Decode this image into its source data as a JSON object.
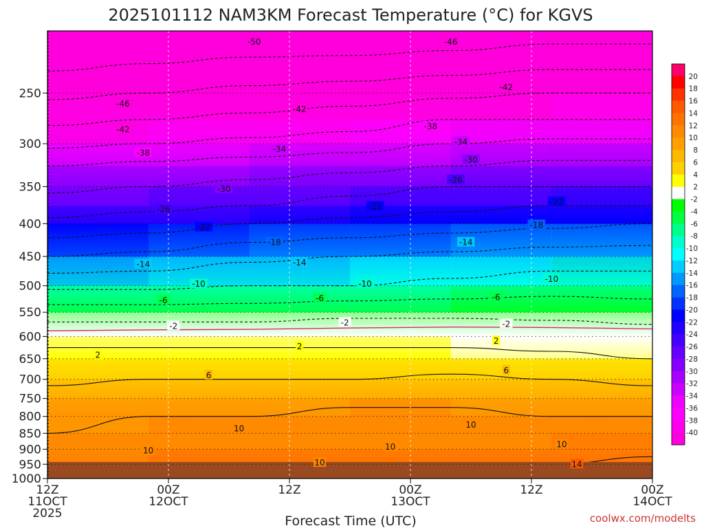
{
  "chart_data": {
    "type": "heatmap",
    "title": "2025101112 NAM3KM Forecast Temperature (°C) for KGVS",
    "xlabel": "Forecast Time (UTC)",
    "ylabel": "",
    "credit": "coolwx.com/modelts",
    "x_range_hours": [
      0,
      60
    ],
    "y_range_hPa": [
      200,
      1000
    ],
    "x_ticks": [
      {
        "hour": 0,
        "lines": [
          "12Z",
          "11OCT",
          "2025"
        ]
      },
      {
        "hour": 12,
        "lines": [
          "00Z",
          "12OCT"
        ]
      },
      {
        "hour": 24,
        "lines": [
          "12Z"
        ]
      },
      {
        "hour": 36,
        "lines": [
          "00Z",
          "13OCT"
        ]
      },
      {
        "hour": 48,
        "lines": [
          "12Z"
        ]
      },
      {
        "hour": 60,
        "lines": [
          "00Z",
          "14OCT"
        ]
      }
    ],
    "y_ticks": [
      250,
      300,
      350,
      400,
      450,
      500,
      550,
      600,
      650,
      700,
      750,
      800,
      850,
      900,
      950,
      1000
    ],
    "pressure_levels_hPa": [
      200,
      225,
      250,
      275,
      300,
      325,
      350,
      375,
      400,
      450,
      500,
      550,
      600,
      650,
      700,
      750,
      800,
      850,
      900,
      950,
      1000
    ],
    "temperature_profile_C": [
      [
        -55,
        -54,
        -54,
        -53,
        -53,
        -52,
        -52
      ],
      [
        -51,
        -50,
        -49,
        -49,
        -48,
        -47,
        -47
      ],
      [
        -47,
        -46,
        -45,
        -44,
        -43,
        -42,
        -42
      ],
      [
        -43,
        -42,
        -41,
        -40,
        -38,
        -38,
        -38
      ],
      [
        -39,
        -38,
        -37,
        -36,
        -34,
        -33,
        -33
      ],
      [
        -34,
        -33,
        -32,
        -31,
        -30,
        -29,
        -29
      ],
      [
        -31,
        -30,
        -29,
        -28,
        -26,
        -26,
        -26
      ],
      [
        -28,
        -27,
        -26,
        -24,
        -23,
        -22,
        -22
      ],
      [
        -25,
        -24,
        -22,
        -21,
        -20,
        -19,
        -18
      ],
      [
        -18,
        -17,
        -15,
        -14,
        -13,
        -12,
        -12
      ],
      [
        -11,
        -11,
        -10,
        -10,
        -9,
        -8,
        -8
      ],
      [
        -4,
        -4,
        -4,
        -3,
        -3,
        -3,
        -4
      ],
      [
        1,
        1,
        1,
        1,
        1,
        0,
        0
      ],
      [
        3,
        3,
        3,
        3,
        3,
        3,
        2
      ],
      [
        5,
        6,
        6,
        6,
        7,
        6,
        5
      ],
      [
        8,
        9,
        9,
        9,
        9,
        9,
        8
      ],
      [
        9,
        10,
        10,
        11,
        11,
        10,
        10
      ],
      [
        10,
        10,
        10,
        10,
        11,
        11,
        12
      ],
      [
        11,
        11,
        11,
        11,
        12,
        12,
        13
      ],
      [
        12,
        13,
        13,
        13,
        13,
        14,
        15
      ],
      [
        15,
        16,
        16,
        16,
        16,
        17,
        18
      ]
    ],
    "colorbar": {
      "labels": [
        20,
        18,
        16,
        14,
        12,
        10,
        8,
        6,
        4,
        2,
        -2,
        -4,
        -6,
        -8,
        -10,
        -12,
        -14,
        -16,
        -18,
        -20,
        -22,
        -24,
        -26,
        -28,
        -30,
        -32,
        -34,
        -36,
        -38,
        -40
      ],
      "colors": [
        "#ff0066",
        "#ff0000",
        "#ff3300",
        "#ff5a00",
        "#ff7200",
        "#ff8a00",
        "#ffa000",
        "#ffb800",
        "#ffd000",
        "#ffff00",
        "#ffffff",
        "#00ff00",
        "#00ff44",
        "#00ff88",
        "#00ffcc",
        "#00ffff",
        "#00ccff",
        "#0099ff",
        "#0066ff",
        "#0033ff",
        "#0000ff",
        "#2200ff",
        "#4400ff",
        "#6600ff",
        "#8800ff",
        "#aa00ff",
        "#cc00ff",
        "#ee00ff",
        "#ff00ff",
        "#ff00ee",
        "#ff00dd"
      ]
    },
    "contour_labels": [
      {
        "value": "-50",
        "hour": 20.5,
        "p": 208
      },
      {
        "value": "-46",
        "hour": 40.0,
        "p": 208
      },
      {
        "value": "-46",
        "hour": 7.5,
        "p": 260
      },
      {
        "value": "-42",
        "hour": 25.0,
        "p": 265
      },
      {
        "value": "-42",
        "hour": 45.5,
        "p": 245
      },
      {
        "value": "-42",
        "hour": 7.5,
        "p": 285
      },
      {
        "value": "-38",
        "hour": 38.0,
        "p": 282
      },
      {
        "value": "-38",
        "hour": 9.5,
        "p": 310
      },
      {
        "value": "-34",
        "hour": 23.0,
        "p": 306
      },
      {
        "value": "-34",
        "hour": 41.0,
        "p": 298
      },
      {
        "value": "-30",
        "hour": 42.0,
        "p": 318
      },
      {
        "value": "-30",
        "hour": 17.5,
        "p": 353
      },
      {
        "value": "-26",
        "hour": 40.5,
        "p": 342
      },
      {
        "value": "-26",
        "hour": 11.5,
        "p": 380
      },
      {
        "value": "-22",
        "hour": 32.5,
        "p": 376
      },
      {
        "value": "-22",
        "hour": 50.5,
        "p": 370
      },
      {
        "value": "-22",
        "hour": 15.5,
        "p": 405
      },
      {
        "value": "-18",
        "hour": 48.5,
        "p": 402
      },
      {
        "value": "-18",
        "hour": 22.5,
        "p": 428
      },
      {
        "value": "-14",
        "hour": 41.5,
        "p": 428
      },
      {
        "value": "-14",
        "hour": 25.0,
        "p": 460
      },
      {
        "value": "-14",
        "hour": 9.5,
        "p": 463
      },
      {
        "value": "-10",
        "hour": 50.0,
        "p": 488
      },
      {
        "value": "-10",
        "hour": 15.0,
        "p": 497
      },
      {
        "value": "-10",
        "hour": 31.5,
        "p": 497
      },
      {
        "value": "-6",
        "hour": 11.5,
        "p": 527
      },
      {
        "value": "-6",
        "hour": 27.0,
        "p": 523
      },
      {
        "value": "-6",
        "hour": 44.5,
        "p": 521
      },
      {
        "value": "-2",
        "hour": 12.5,
        "p": 578
      },
      {
        "value": "-2",
        "hour": 29.5,
        "p": 571
      },
      {
        "value": "-2",
        "hour": 45.5,
        "p": 574
      },
      {
        "value": "2",
        "hour": 25.0,
        "p": 622
      },
      {
        "value": "2",
        "hour": 44.5,
        "p": 610
      },
      {
        "value": "2",
        "hour": 5.0,
        "p": 642
      },
      {
        "value": "6",
        "hour": 16.0,
        "p": 690
      },
      {
        "value": "6",
        "hour": 45.5,
        "p": 678
      },
      {
        "value": "10",
        "hour": 19.0,
        "p": 836
      },
      {
        "value": "10",
        "hour": 10.0,
        "p": 905
      },
      {
        "value": "10",
        "hour": 34.0,
        "p": 892
      },
      {
        "value": "10",
        "hour": 42.0,
        "p": 825
      },
      {
        "value": "10",
        "hour": 51.0,
        "p": 885
      },
      {
        "value": "10",
        "hour": 27.0,
        "p": 945
      },
      {
        "value": "14",
        "hour": 52.5,
        "p": 950
      }
    ],
    "freezing_line_hPa": [
      588,
      586,
      585,
      582,
      580,
      581,
      584
    ]
  }
}
